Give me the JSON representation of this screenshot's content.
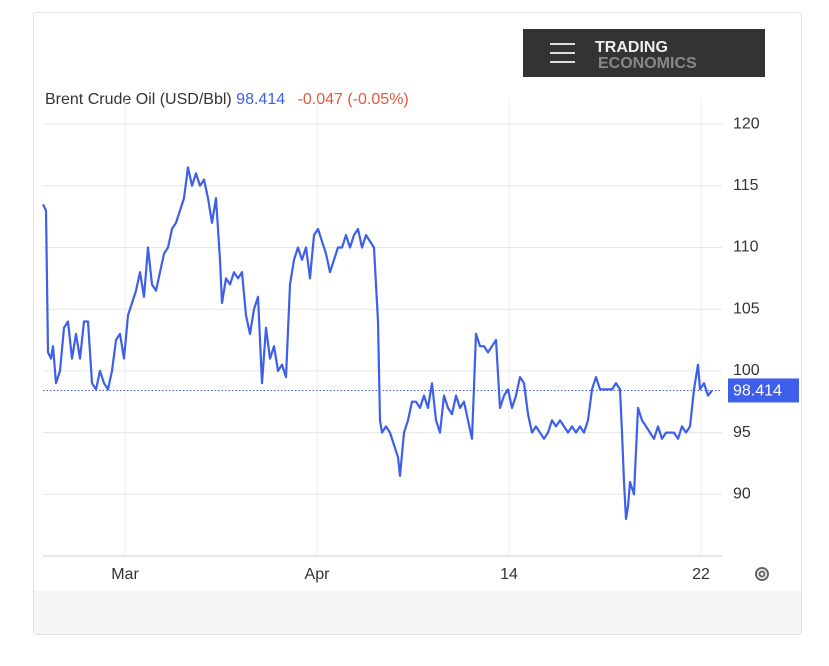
{
  "chart_data": {
    "type": "line",
    "title": "Brent Crude Oil (USD/Bbl)",
    "last": 98.414,
    "change": -0.047,
    "change_pct": "(-0.05%)",
    "logo": [
      "TRADING",
      "ECONOMICS"
    ],
    "series": [
      {
        "name": "Brent Crude Oil",
        "color": "#3d5fe9",
        "x": [
          0,
          3,
          5,
          8,
          10,
          13,
          17,
          21,
          25,
          29,
          33,
          37,
          41,
          45,
          49,
          53,
          57,
          61,
          65,
          69,
          73,
          77,
          81,
          85,
          89,
          93,
          97,
          101,
          105,
          109,
          113,
          117,
          121,
          125,
          129,
          133,
          137,
          141,
          145,
          149,
          153,
          157,
          161,
          165,
          169,
          173,
          177,
          179,
          183,
          187,
          191,
          195,
          199,
          203,
          207,
          211,
          215,
          219,
          223,
          227,
          231,
          235,
          239,
          243,
          247,
          251,
          255,
          259,
          263,
          267,
          271,
          275,
          279,
          283,
          287,
          291,
          295,
          299,
          303,
          307,
          311,
          315,
          319,
          323,
          327,
          331,
          335,
          337,
          339,
          343,
          347,
          351,
          355,
          357,
          361,
          365,
          369,
          373,
          377,
          381,
          385,
          389,
          393,
          397,
          401,
          405,
          409,
          413,
          417,
          421,
          425,
          429,
          433,
          437,
          441,
          445,
          449,
          453,
          457,
          461,
          465,
          469,
          473,
          477,
          481,
          485,
          489,
          493,
          497,
          501,
          505,
          509,
          513,
          517,
          521,
          525,
          529,
          533,
          537,
          541,
          545,
          549,
          553,
          557,
          561,
          565,
          569,
          573,
          577,
          579,
          581,
          583,
          585,
          587,
          591,
          595,
          599,
          603,
          607,
          611,
          615,
          619,
          623,
          627,
          631,
          635,
          639,
          643,
          647,
          651,
          655,
          657,
          661,
          665,
          669
        ],
        "values": [
          113.5,
          113,
          101.5,
          101,
          102,
          99,
          100,
          103.5,
          104,
          101,
          103,
          101,
          104,
          104,
          99,
          98.5,
          100,
          99,
          98.5,
          100,
          102.5,
          103,
          101,
          104.5,
          105.5,
          106.5,
          108,
          106,
          110,
          107,
          106.5,
          108,
          109.5,
          110,
          111.5,
          112,
          113,
          114,
          116.5,
          115,
          116,
          115,
          115.5,
          114,
          112,
          114,
          109,
          105.5,
          107.5,
          107,
          108,
          107.5,
          108,
          104.5,
          103,
          105,
          106,
          99,
          103.5,
          101,
          102,
          100,
          100.5,
          99.5,
          107,
          109,
          110,
          109,
          110,
          107.5,
          111,
          111.5,
          110.5,
          109.5,
          108,
          109,
          110,
          110,
          111,
          110,
          111,
          111.5,
          110,
          111,
          110.5,
          110,
          104,
          96,
          95,
          95.5,
          95,
          94,
          93,
          91.5,
          95,
          96,
          97.5,
          97.5,
          97,
          98,
          97,
          99,
          96,
          95,
          98,
          97,
          96.5,
          98,
          97,
          97.5,
          96,
          94.5,
          103,
          102,
          102,
          101.5,
          102,
          102.5,
          97,
          98,
          98.5,
          97,
          98,
          99.5,
          99,
          96.5,
          95,
          95.5,
          95,
          94.5,
          95,
          96,
          95.5,
          96,
          95.5,
          95,
          95.5,
          95,
          95.5,
          95,
          96,
          98.5,
          99.5,
          98.5,
          98.5,
          98.5,
          98.5,
          99,
          98.5,
          95,
          91,
          88,
          89,
          91,
          90,
          97,
          96,
          95.5,
          95,
          94.5,
          95.5,
          94.5,
          95,
          95,
          95,
          94.5,
          95.5,
          95,
          95.5,
          98.5,
          100.5,
          98.5,
          99,
          98,
          98.414
        ]
      }
    ],
    "xlim": [
      0,
      679
    ],
    "xticks": [
      {
        "value": 82,
        "label": "Mar"
      },
      {
        "value": 274,
        "label": "Apr"
      },
      {
        "value": 466,
        "label": "14"
      },
      {
        "value": 658,
        "label": "22"
      }
    ],
    "ylim": [
      85,
      122
    ],
    "yticks": [
      90,
      95,
      100,
      105,
      110,
      115,
      120
    ],
    "grid": true
  }
}
